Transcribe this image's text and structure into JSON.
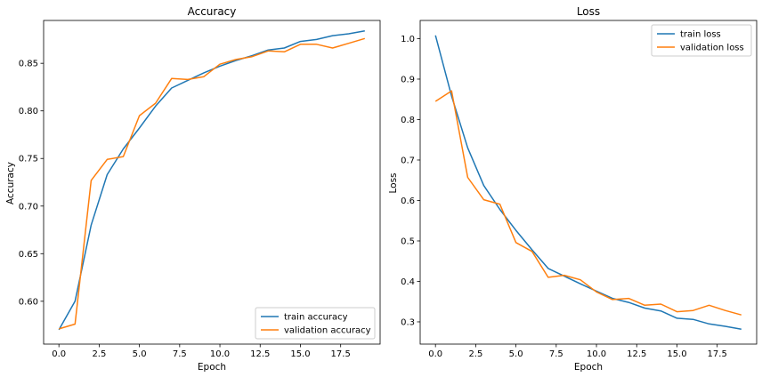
{
  "chart_data": [
    {
      "type": "line",
      "title": "Accuracy",
      "xlabel": "Epoch",
      "ylabel": "Accuracy",
      "xlim": [
        -0.95,
        19.95
      ],
      "ylim": [
        0.555,
        0.895
      ],
      "xticks": [
        0.0,
        2.5,
        5.0,
        7.5,
        10.0,
        12.5,
        15.0,
        17.5
      ],
      "xtick_labels": [
        "0.0",
        "2.5",
        "5.0",
        "7.5",
        "10.0",
        "12.5",
        "15.0",
        "17.5"
      ],
      "yticks": [
        0.6,
        0.65,
        0.7,
        0.75,
        0.8,
        0.85
      ],
      "ytick_labels": [
        "0.60",
        "0.65",
        "0.70",
        "0.75",
        "0.80",
        "0.85"
      ],
      "legend_position": "lower right",
      "grid": false,
      "x": [
        0,
        1,
        2,
        3,
        4,
        5,
        6,
        7,
        8,
        9,
        10,
        11,
        12,
        13,
        14,
        15,
        16,
        17,
        18,
        19
      ],
      "series": [
        {
          "name": "train accuracy",
          "color": "#1f77b4",
          "values": [
            0.57,
            0.6,
            0.68,
            0.733,
            0.76,
            0.782,
            0.805,
            0.824,
            0.832,
            0.84,
            0.847,
            0.853,
            0.858,
            0.864,
            0.866,
            0.873,
            0.875,
            0.879,
            0.881,
            0.884
          ]
        },
        {
          "name": "validation accuracy",
          "color": "#ff7f0e",
          "values": [
            0.571,
            0.576,
            0.727,
            0.749,
            0.752,
            0.795,
            0.808,
            0.834,
            0.833,
            0.836,
            0.849,
            0.854,
            0.857,
            0.863,
            0.862,
            0.87,
            0.87,
            0.866,
            0.871,
            0.876
          ]
        }
      ]
    },
    {
      "type": "line",
      "title": "Loss",
      "xlabel": "Epoch",
      "ylabel": "Loss",
      "xlim": [
        -0.95,
        19.95
      ],
      "ylim": [
        0.245,
        1.045
      ],
      "xticks": [
        0.0,
        2.5,
        5.0,
        7.5,
        10.0,
        12.5,
        15.0,
        17.5
      ],
      "xtick_labels": [
        "0.0",
        "2.5",
        "5.0",
        "7.5",
        "10.0",
        "12.5",
        "15.0",
        "17.5"
      ],
      "yticks": [
        0.3,
        0.4,
        0.5,
        0.6,
        0.7,
        0.8,
        0.9,
        1.0
      ],
      "ytick_labels": [
        "0.3",
        "0.4",
        "0.5",
        "0.6",
        "0.7",
        "0.8",
        "0.9",
        "1.0"
      ],
      "legend_position": "upper right",
      "grid": false,
      "x": [
        0,
        1,
        2,
        3,
        4,
        5,
        6,
        7,
        8,
        9,
        10,
        11,
        12,
        13,
        14,
        15,
        16,
        17,
        18,
        19
      ],
      "series": [
        {
          "name": "train loss",
          "color": "#1f77b4",
          "values": [
            1.008,
            0.858,
            0.73,
            0.637,
            0.578,
            0.526,
            0.478,
            0.432,
            0.413,
            0.394,
            0.376,
            0.358,
            0.348,
            0.334,
            0.327,
            0.309,
            0.306,
            0.295,
            0.289,
            0.282
          ]
        },
        {
          "name": "validation loss",
          "color": "#ff7f0e",
          "values": [
            0.845,
            0.871,
            0.657,
            0.602,
            0.591,
            0.496,
            0.474,
            0.41,
            0.415,
            0.404,
            0.374,
            0.355,
            0.358,
            0.341,
            0.344,
            0.325,
            0.328,
            0.341,
            0.328,
            0.317
          ]
        }
      ]
    }
  ]
}
